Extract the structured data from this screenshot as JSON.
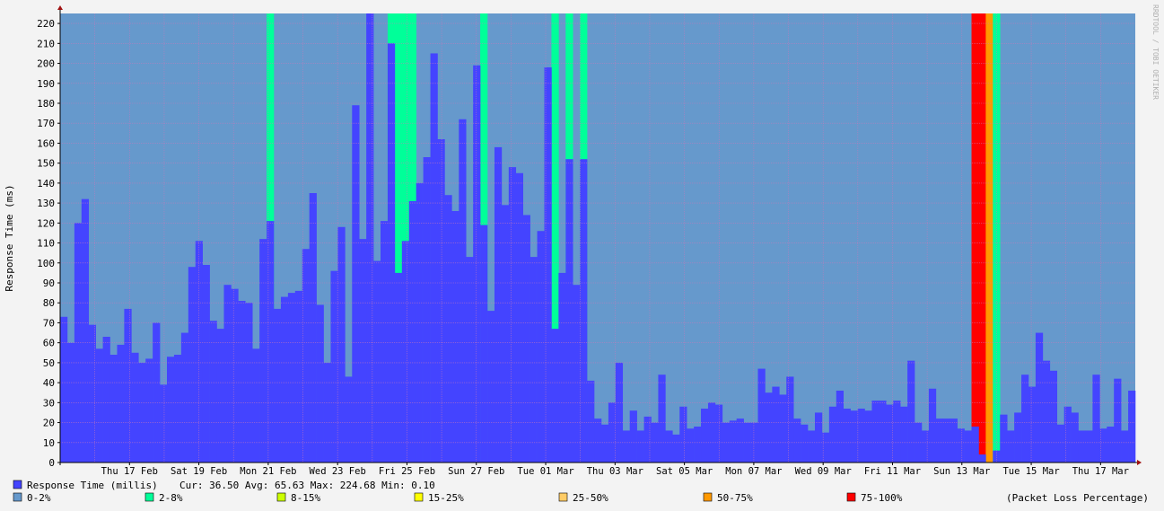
{
  "chart_data": {
    "type": "bar",
    "ylabel": "Response Time (ms)",
    "watermark": "RRDTOOL / TOBI OETIKER",
    "ylim": [
      0,
      225
    ],
    "yticks": [
      0,
      10,
      20,
      30,
      40,
      50,
      60,
      70,
      80,
      90,
      100,
      110,
      120,
      130,
      140,
      150,
      160,
      170,
      180,
      190,
      200,
      210,
      220
    ],
    "ytick_labels": [
      "0",
      "10",
      "20",
      "30",
      "40",
      "50",
      "60",
      "70",
      "80",
      "90",
      "100",
      "110",
      "120",
      "130",
      "140",
      "150",
      "160",
      "170",
      "180",
      "190",
      "200",
      "210",
      "220"
    ],
    "x_range_days": [
      "2022-02-15",
      "2022-03-18"
    ],
    "xtick_labels": [
      "Thu 17 Feb",
      "Sat 19 Feb",
      "Mon 21 Feb",
      "Wed 23 Feb",
      "Fri 25 Feb",
      "Sun 27 Feb",
      "Tue 01 Mar",
      "Thu 03 Mar",
      "Sat 05 Mar",
      "Mon 07 Mar",
      "Wed 09 Mar",
      "Fri 11 Mar",
      "Sun 13 Mar",
      "Tue 15 Mar",
      "Thu 17 Mar"
    ],
    "response_time": [
      73,
      60,
      120,
      132,
      69,
      57,
      63,
      54,
      59,
      77,
      55,
      50,
      52,
      70,
      39,
      53,
      54,
      65,
      98,
      111,
      99,
      71,
      67,
      89,
      87,
      81,
      80,
      57,
      112,
      121,
      77,
      83,
      85,
      86,
      107,
      135,
      79,
      50,
      96,
      118,
      43,
      179,
      112,
      225,
      101,
      121,
      210,
      95,
      111,
      131,
      140,
      153,
      205,
      162,
      134,
      126,
      172,
      103,
      199,
      119,
      76,
      158,
      129,
      148,
      145,
      124,
      103,
      116,
      198,
      67,
      95,
      152,
      89,
      152,
      41,
      22,
      19,
      30,
      50,
      16,
      26,
      16,
      23,
      20,
      44,
      16,
      14,
      28,
      17,
      18,
      27,
      30,
      29,
      20,
      21,
      22,
      20,
      20,
      47,
      35,
      38,
      34,
      43,
      22,
      19,
      16,
      25,
      15,
      28,
      36,
      27,
      26,
      27,
      26,
      31,
      31,
      29,
      31,
      28,
      51,
      20,
      16,
      37,
      22,
      22,
      22,
      17,
      16,
      18,
      4,
      0,
      6,
      24,
      16,
      25,
      44,
      38,
      65,
      51,
      46,
      19,
      28,
      25,
      16,
      16,
      44,
      17,
      18,
      42,
      16,
      36
    ],
    "loss_bars": [
      {
        "index": 29,
        "color": "2-8%"
      },
      {
        "index": 46,
        "color": "2-8%"
      },
      {
        "index": 47,
        "color": "2-8%"
      },
      {
        "index": 48,
        "color": "2-8%"
      },
      {
        "index": 49,
        "color": "2-8%"
      },
      {
        "index": 59,
        "color": "2-8%"
      },
      {
        "index": 69,
        "color": "2-8%"
      },
      {
        "index": 71,
        "color": "2-8%"
      },
      {
        "index": 73,
        "color": "2-8%"
      },
      {
        "index": 128,
        "color": "75-100%"
      },
      {
        "index": 129,
        "color": "75-100%"
      },
      {
        "index": 130,
        "color": "50-75%"
      },
      {
        "index": 131,
        "color": "2-8%"
      }
    ],
    "legend_series": {
      "label": "Response Time (millis)",
      "stats": "Cur: 36.50   Avg: 65.63   Max: 224.68   Min:  0.10",
      "color": "#4444ff"
    },
    "legend_loss": [
      {
        "label": "0-2%",
        "key": "0-2%",
        "color": "#6699cc"
      },
      {
        "label": "2-8%",
        "key": "2-8%",
        "color": "#00ff99"
      },
      {
        "label": "8-15%",
        "key": "8-15%",
        "color": "#ccff00"
      },
      {
        "label": "15-25%",
        "key": "15-25%",
        "color": "#ffff00"
      },
      {
        "label": "25-50%",
        "key": "25-50%",
        "color": "#ffcc66"
      },
      {
        "label": "50-75%",
        "key": "50-75%",
        "color": "#ff9900"
      },
      {
        "label": "75-100%",
        "key": "75-100%",
        "color": "#ff0000"
      }
    ],
    "legend_note": "(Packet Loss Percentage)"
  }
}
